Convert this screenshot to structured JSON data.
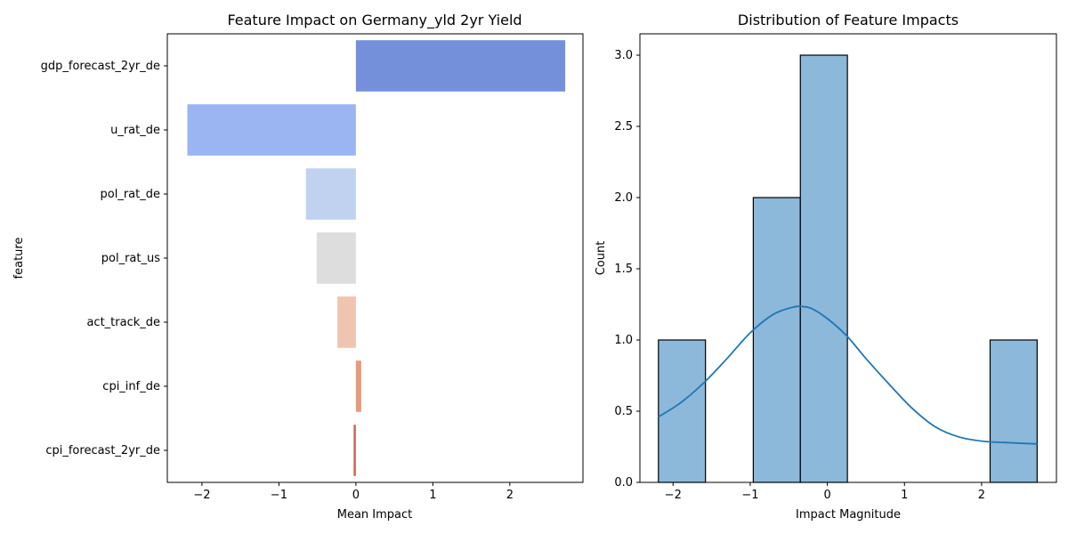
{
  "chart_data": [
    {
      "type": "bar",
      "orientation": "horizontal",
      "title": "Feature Impact on Germany_yld 2yr Yield",
      "xlabel": "Mean Impact",
      "ylabel": "feature",
      "xlim": [
        -2.45,
        2.95
      ],
      "xticks": [
        -2,
        -1,
        0,
        1,
        2
      ],
      "xtick_labels": [
        "−2",
        "−1",
        "0",
        "1",
        "2"
      ],
      "categories": [
        "gdp_forecast_2yr_de",
        "u_rat_de",
        "pol_rat_de",
        "pol_rat_us",
        "act_track_de",
        "cpi_inf_de",
        "cpi_forecast_2yr_de"
      ],
      "values": [
        2.72,
        -2.19,
        -0.65,
        -0.51,
        -0.24,
        0.07,
        -0.03
      ],
      "colors": [
        "#7590db",
        "#9bb5f2",
        "#c1d2f0",
        "#dddddd",
        "#efc4b0",
        "#e89b7c",
        "#cf6a55"
      ],
      "grid": false,
      "legend": "none"
    },
    {
      "type": "histogram",
      "title": "Distribution of Feature Impacts",
      "xlabel": "Impact Magnitude",
      "ylabel": "Count",
      "xlim": [
        -2.43,
        2.97
      ],
      "ylim": [
        0,
        3.15
      ],
      "xticks": [
        -2,
        -1,
        0,
        1,
        2
      ],
      "xtick_labels": [
        "−2",
        "−1",
        "0",
        "1",
        "2"
      ],
      "yticks": [
        0,
        0.5,
        1,
        1.5,
        2,
        2.5,
        3
      ],
      "ytick_labels": [
        "0.0",
        "0.5",
        "1.0",
        "1.5",
        "2.0",
        "2.5",
        "3.0"
      ],
      "bins": [
        {
          "x0": -2.19,
          "x1": -1.58,
          "count": 1
        },
        {
          "x0": -1.58,
          "x1": -0.96,
          "count": 0
        },
        {
          "x0": -0.96,
          "x1": -0.35,
          "count": 2
        },
        {
          "x0": -0.35,
          "x1": 0.26,
          "count": 3
        },
        {
          "x0": 0.26,
          "x1": 0.88,
          "count": 0
        },
        {
          "x0": 0.88,
          "x1": 1.49,
          "count": 0
        },
        {
          "x0": 1.49,
          "x1": 2.11,
          "count": 0
        },
        {
          "x0": 2.11,
          "x1": 2.72,
          "count": 1
        }
      ],
      "kde": {
        "x": [
          -2.19,
          -1.9,
          -1.6,
          -1.3,
          -1.0,
          -0.7,
          -0.45,
          -0.33,
          -0.2,
          0.0,
          0.25,
          0.5,
          0.8,
          1.1,
          1.4,
          1.7,
          2.0,
          2.3,
          2.72
        ],
        "y": [
          0.46,
          0.56,
          0.7,
          0.87,
          1.05,
          1.18,
          1.23,
          1.235,
          1.22,
          1.15,
          1.03,
          0.87,
          0.69,
          0.52,
          0.39,
          0.32,
          0.29,
          0.28,
          0.27
        ]
      },
      "bar_color": "#8cb8da",
      "line_color": "#1f77b4",
      "grid": false,
      "legend": "none"
    }
  ]
}
